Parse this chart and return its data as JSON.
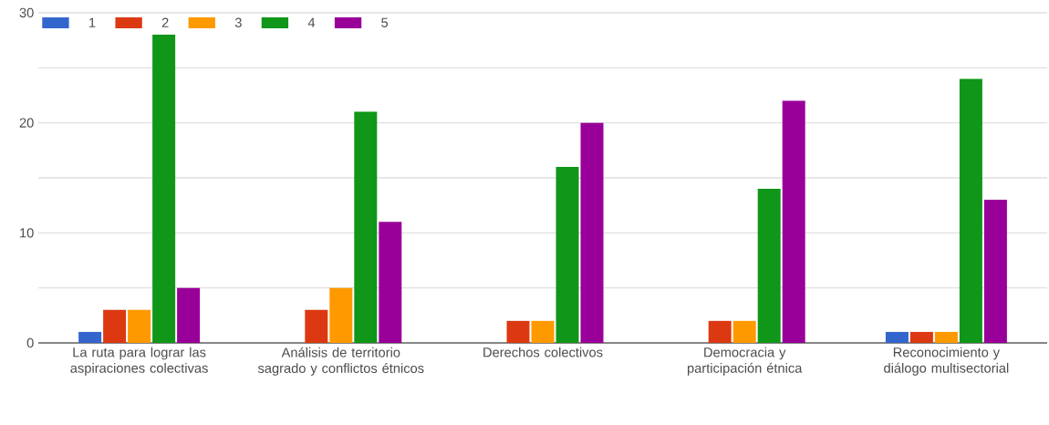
{
  "chart_data": {
    "type": "bar",
    "categories": [
      "La ruta para lograr las aspiraciones colectivas",
      "Análisis de territorio sagrado y conflictos étnicos",
      "Derechos colectivos",
      "Democracia y participación étnica",
      "Reconocimiento y diálogo multisectorial"
    ],
    "series": [
      {
        "name": "1",
        "color": "#3366cc",
        "values": [
          1,
          0,
          0,
          0,
          1
        ]
      },
      {
        "name": "2",
        "color": "#dc3912",
        "values": [
          3,
          3,
          2,
          2,
          1
        ]
      },
      {
        "name": "3",
        "color": "#ff9900",
        "values": [
          3,
          5,
          2,
          2,
          1
        ]
      },
      {
        "name": "4",
        "color": "#109618",
        "values": [
          28,
          21,
          16,
          14,
          24
        ]
      },
      {
        "name": "5",
        "color": "#990099",
        "values": [
          5,
          11,
          20,
          22,
          13
        ]
      }
    ],
    "ylim": [
      0,
      30
    ],
    "yticks": [
      0,
      {
        "value": 5,
        "label": null
      },
      10,
      {
        "value": 15,
        "label": null
      },
      20,
      {
        "value": 25,
        "label": null
      },
      30
    ],
    "grid": "y",
    "legend": "top left"
  }
}
